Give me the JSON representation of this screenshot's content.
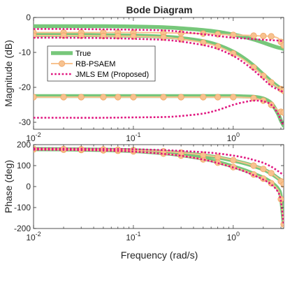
{
  "chart_data": {
    "type": "line",
    "title": "Bode Diagram",
    "xlabel": "Frequency (rad/s)",
    "legend": {
      "placement": "left",
      "entries": [
        "True",
        "RB-PSAEM",
        "JMLS EM (Proposed)"
      ]
    },
    "colors": {
      "True": "#77c77a",
      "RB-PSAEM": "#f7c28f",
      "RB-PSAEM-edge": "#f0a666",
      "JMLS EM (Proposed)": "#e0157f"
    },
    "xscale": "log",
    "xlim": [
      0.01,
      3.2
    ],
    "x_ticks": [
      {
        "value": 0.01,
        "base": "10",
        "exp": "-2"
      },
      {
        "value": 0.1,
        "base": "10",
        "exp": "-1"
      },
      {
        "value": 1,
        "base": "10",
        "exp": "0"
      }
    ],
    "panels": [
      {
        "name": "magnitude",
        "ylabel": "Magnitude (dB)",
        "ylim": [
          -32,
          0
        ],
        "y_ticks": [
          0,
          -10,
          -20,
          -30
        ],
        "x": [
          0.01,
          0.02,
          0.05,
          0.1,
          0.2,
          0.3,
          0.5,
          0.7,
          1.0,
          1.3,
          1.6,
          2.0,
          2.4,
          2.8,
          3.0,
          3.2
        ],
        "series": [
          {
            "name": "True",
            "curve": 1,
            "values": [
              -2.5,
              -2.5,
              -2.5,
              -2.6,
              -2.8,
              -3.1,
              -3.6,
              -4.1,
              -4.9,
              -5.6,
              -6.3,
              -7.2,
              -8.0,
              -8.6,
              -8.8,
              -9.0
            ]
          },
          {
            "name": "True",
            "curve": 2,
            "values": [
              -5.0,
              -5.0,
              -5.1,
              -5.2,
              -5.5,
              -5.9,
              -6.8,
              -7.9,
              -9.8,
              -11.8,
              -13.8,
              -16.3,
              -18.3,
              -19.8,
              -20.3,
              -20.8
            ]
          },
          {
            "name": "True",
            "curve": 3,
            "values": [
              -22.5,
              -22.5,
              -22.5,
              -22.5,
              -22.5,
              -22.5,
              -22.5,
              -22.5,
              -22.5,
              -22.6,
              -22.7,
              -23.2,
              -24.5,
              -27.5,
              -29.5,
              -31.0
            ]
          },
          {
            "name": "RB-PSAEM",
            "curve": 1,
            "values": [
              -4.3,
              -4.3,
              -4.3,
              -4.3,
              -4.4,
              -4.5,
              -4.6,
              -4.8,
              -5.0,
              -5.1,
              -5.2,
              -5.3,
              -5.4,
              -5.9,
              -7.0,
              -8.0
            ]
          },
          {
            "name": "RB-PSAEM",
            "curve": 2,
            "values": [
              -5.2,
              -5.2,
              -5.3,
              -5.4,
              -5.7,
              -6.2,
              -7.2,
              -8.3,
              -10.3,
              -12.3,
              -14.3,
              -16.7,
              -18.6,
              -20.0,
              -20.5,
              -21.0
            ]
          },
          {
            "name": "RB-PSAEM",
            "curve": 3,
            "values": [
              -22.8,
              -22.8,
              -22.8,
              -22.8,
              -22.8,
              -22.8,
              -22.8,
              -22.8,
              -22.8,
              -22.9,
              -23.1,
              -23.8,
              -25.0,
              -26.5,
              -27.0,
              -27.2
            ]
          },
          {
            "name": "JMLS EM (Proposed)",
            "curve": 1,
            "values": [
              -3.3,
              -3.3,
              -3.4,
              -3.5,
              -3.7,
              -4.1,
              -4.8,
              -5.3,
              -5.8,
              -6.0,
              -6.2,
              -6.4,
              -6.5,
              -6.6,
              -6.7,
              -6.8
            ]
          },
          {
            "name": "JMLS EM (Proposed)",
            "curve": 2,
            "values": [
              -5.8,
              -5.8,
              -5.9,
              -6.1,
              -6.4,
              -6.9,
              -7.9,
              -9.0,
              -11.0,
              -13.1,
              -15.1,
              -17.6,
              -19.6,
              -20.6,
              -21.0,
              -21.4
            ]
          },
          {
            "name": "JMLS EM (Proposed)",
            "curve": 3,
            "values": [
              -28.7,
              -28.7,
              -28.7,
              -28.6,
              -28.5,
              -28.2,
              -27.5,
              -26.5,
              -25.0,
              -24.2,
              -23.8,
              -24.0,
              -25.0,
              -27.5,
              -29.5,
              -31.0
            ]
          }
        ]
      },
      {
        "name": "phase",
        "ylabel": "Phase (deg)",
        "ylim": [
          -200,
          200
        ],
        "y_ticks": [
          200,
          100,
          0,
          -100,
          -200
        ],
        "x": [
          0.01,
          0.02,
          0.05,
          0.1,
          0.2,
          0.3,
          0.5,
          0.7,
          1.0,
          1.3,
          1.6,
          2.0,
          2.4,
          2.8,
          3.0,
          3.2
        ],
        "series": [
          {
            "name": "True",
            "curve": 1,
            "values": [
              178,
              177,
              174,
              169,
              159,
              150,
              133,
              117,
              96,
              78,
              61,
              42,
              20,
              -10,
              -50,
              -180
            ]
          },
          {
            "name": "True",
            "curve": 2,
            "values": [
              179,
              178,
              176,
              173,
              166,
              160,
              149,
              139,
              124,
              111,
              98,
              82,
              62,
              40,
              30,
              20
            ]
          },
          {
            "name": "RB-PSAEM",
            "curve": 1,
            "values": [
              177,
              176,
              173,
              168,
              157,
              148,
              130,
              114,
              93,
              75,
              58,
              38,
              16,
              -15,
              -60,
              -180
            ]
          },
          {
            "name": "RB-PSAEM",
            "curve": 2,
            "values": [
              180,
              179,
              177,
              174,
              168,
              162,
              151,
              141,
              126,
              113,
              100,
              84,
              64,
              40,
              25,
              10
            ]
          },
          {
            "name": "JMLS EM (Proposed)",
            "curve": 1,
            "values": [
              176,
              175,
              172,
              167,
              156,
              147,
              129,
              112,
              91,
              72,
              54,
              33,
              10,
              -25,
              -70,
              -185
            ]
          },
          {
            "name": "JMLS EM (Proposed)",
            "curve": 2,
            "values": [
              182,
              181,
              180,
              178,
              174,
              170,
              164,
              158,
              148,
              138,
              127,
              113,
              95,
              74,
              64,
              55
            ]
          }
        ]
      }
    ]
  }
}
